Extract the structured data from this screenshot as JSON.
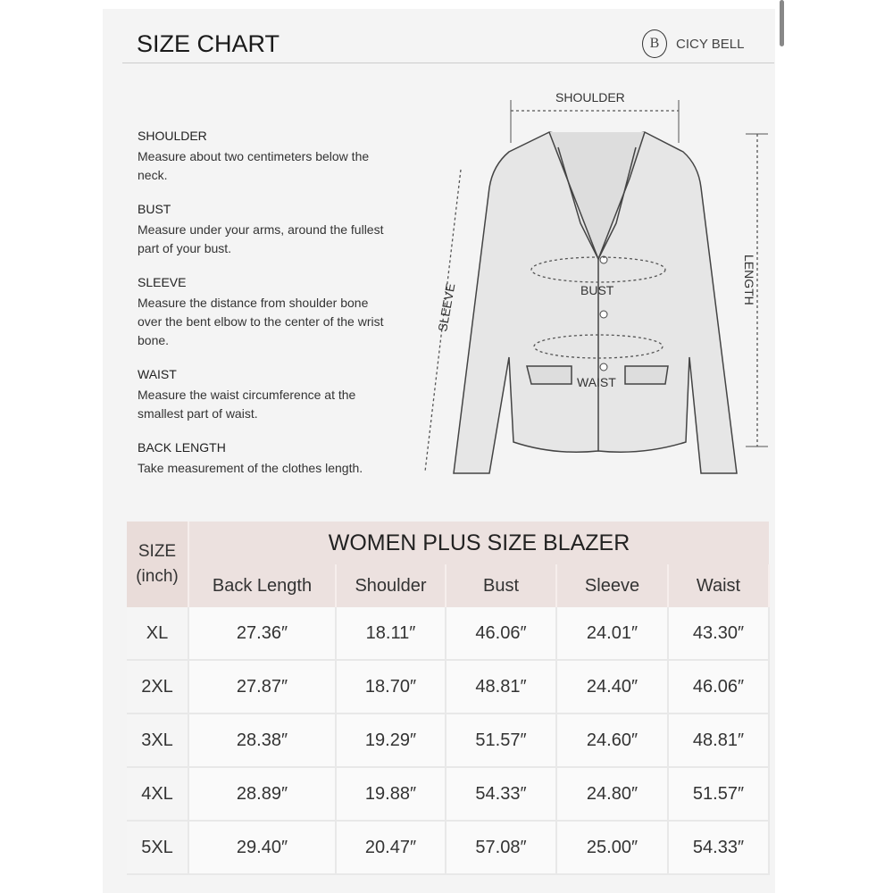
{
  "header": {
    "title": "SIZE CHART",
    "brand": "CICY BELL",
    "brand_mark": "B"
  },
  "definitions": [
    {
      "name": "SHOULDER",
      "text": "Measure about two centimeters below the neck."
    },
    {
      "name": "BUST",
      "text": "Measure under your arms, around the fullest part of your bust."
    },
    {
      "name": "SLEEVE",
      "text": "Measure the distance from shoulder bone over the bent elbow to the center of the wrist bone."
    },
    {
      "name": "WAIST",
      "text": "Measure the waist circumference at the smallest part of waist."
    },
    {
      "name": "BACK LENGTH",
      "text": "Take measurement of the clothes length."
    }
  ],
  "diagram": {
    "shoulder": "SHOULDER",
    "bust": "BUST",
    "waist": "WAIST",
    "sleeve": "SLEEVE",
    "length": "LENGTH"
  },
  "table": {
    "title": "WOMEN PLUS SIZE BLAZER",
    "size_label": "SIZE",
    "unit_label": "(inch)",
    "columns": [
      "Back Length",
      "Shoulder",
      "Bust",
      "Sleeve",
      "Waist"
    ],
    "rows": [
      [
        "XL",
        "27.36″",
        "18.11″",
        "46.06″",
        "24.01″",
        "43.30″"
      ],
      [
        "2XL",
        "27.87″",
        "18.70″",
        "48.81″",
        "24.40″",
        "46.06″"
      ],
      [
        "3XL",
        "28.38″",
        "19.29″",
        "51.57″",
        "24.60″",
        "48.81″"
      ],
      [
        "4XL",
        "28.89″",
        "19.88″",
        "54.33″",
        "24.80″",
        "51.57″"
      ],
      [
        "5XL",
        "29.40″",
        "20.47″",
        "57.08″",
        "25.00″",
        "54.33″"
      ]
    ]
  }
}
